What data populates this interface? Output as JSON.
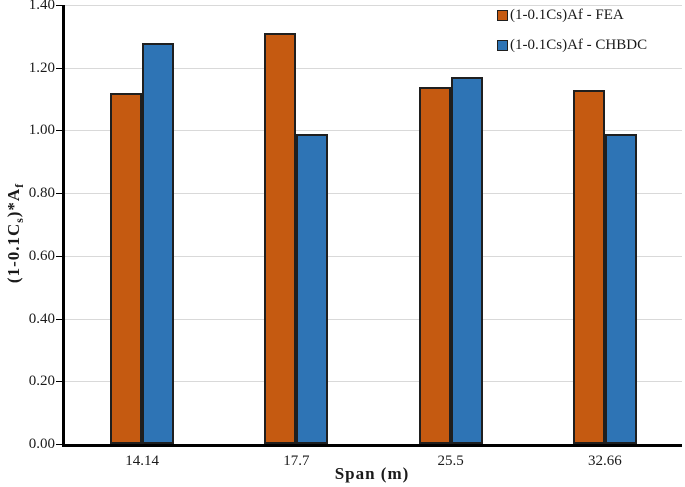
{
  "chart_data": {
    "type": "bar",
    "title": "",
    "categories": [
      "14.14",
      "17.7",
      "25.5",
      "32.66"
    ],
    "series": [
      {
        "key": "fea",
        "name": "(1-0.1Cs)Af - FEA",
        "color": "#C55A11",
        "values": [
          1.12,
          1.31,
          1.14,
          1.13
        ]
      },
      {
        "key": "chbdc",
        "name": "(1-0.1Cs)Af - CHBDC",
        "color": "#2E74B5",
        "values": [
          1.28,
          0.99,
          1.17,
          0.99
        ]
      }
    ],
    "xlabel": "Span (m)",
    "ylabel": "(1-0.1Cs)*Af",
    "ylabel_rich": {
      "pre": "(1-0.1C",
      "sub_s": "s",
      "mid": ")*A",
      "sub_f": "f"
    },
    "ylim": [
      0,
      1.4
    ],
    "ytick_step": 0.2,
    "yticks": [
      "0.00",
      "0.20",
      "0.40",
      "0.60",
      "0.80",
      "1.00",
      "1.20",
      "1.40"
    ],
    "grid": "horizontal",
    "legend_position": "top-right",
    "style": {
      "plot_background": "#FFFFFF",
      "gridline_color": "#D9D9D9",
      "axis_line_color": "#000000",
      "bar_border_color": "#1F1F1F",
      "text_color": "#1A1A1A"
    }
  }
}
